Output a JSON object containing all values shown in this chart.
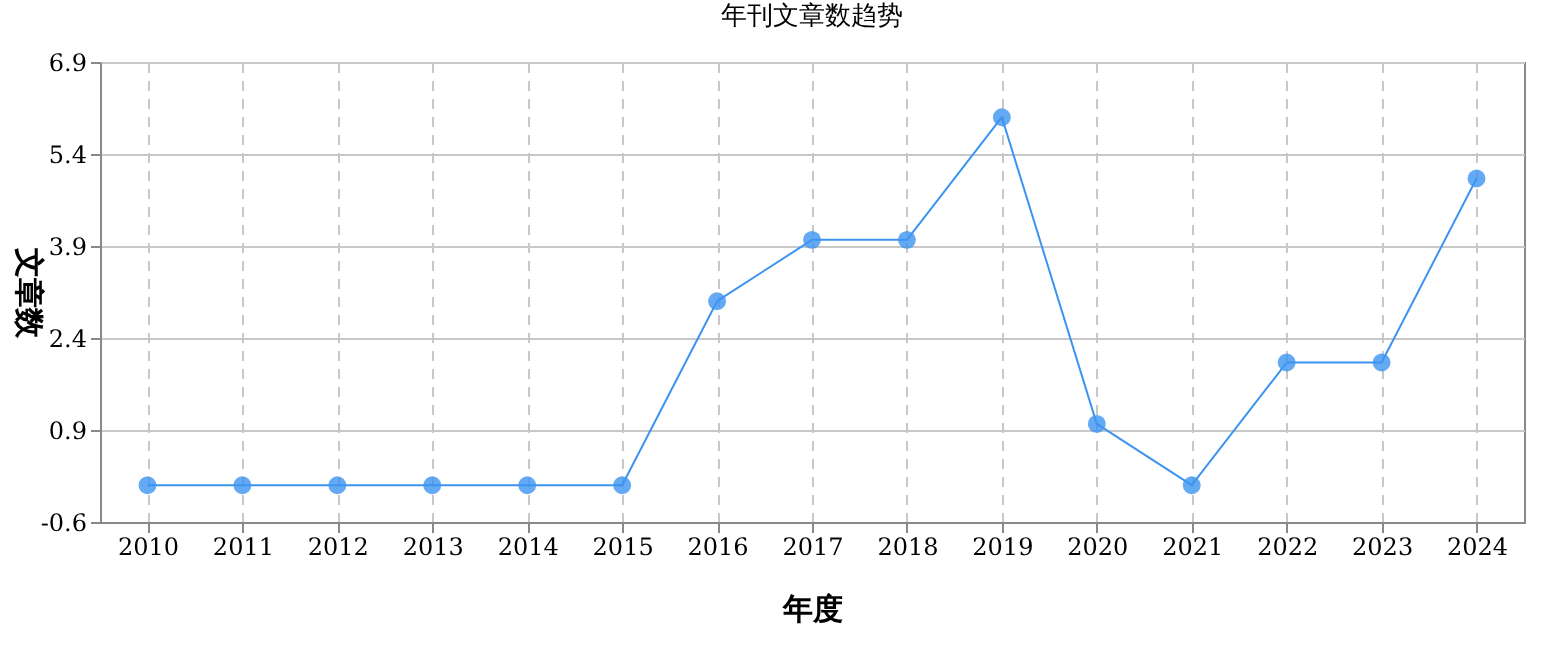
{
  "chart_data": {
    "type": "line",
    "title": "年刊文章数趋势",
    "xlabel": "年度",
    "ylabel": "文章数",
    "categories": [
      "2010",
      "2011",
      "2012",
      "2013",
      "2014",
      "2015",
      "2016",
      "2017",
      "2018",
      "2019",
      "2020",
      "2021",
      "2022",
      "2023",
      "2024"
    ],
    "series": [
      {
        "color": "#3d94f0",
        "values": [
          0,
          0,
          0,
          0,
          0,
          0,
          3,
          4,
          4,
          6,
          1,
          0,
          2,
          2,
          5
        ]
      }
    ],
    "ylim": [
      -0.6,
      6.9
    ],
    "yticks": [
      -0.6,
      0.9,
      2.4,
      3.9,
      5.4,
      6.9
    ],
    "grid": true,
    "marker": "circle",
    "line_style": "solid"
  }
}
